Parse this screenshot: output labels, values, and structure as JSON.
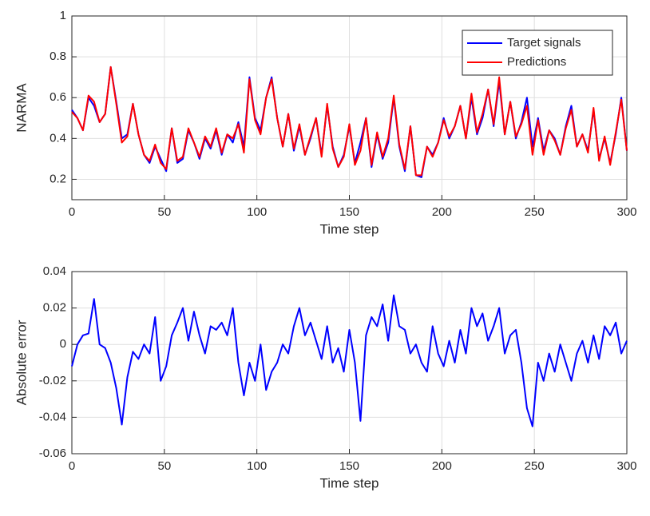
{
  "chart_data": [
    {
      "type": "line",
      "ylabel": "NARMA",
      "xlabel": "Time step",
      "grid": true,
      "legend": "northeast",
      "xlim": [
        0,
        300
      ],
      "xticks": [
        0,
        50,
        100,
        150,
        200,
        250,
        300
      ],
      "ylim": [
        0.1,
        1
      ],
      "yticks": [
        0.2,
        0.4,
        0.6,
        0.8,
        1
      ],
      "x": [
        0,
        3,
        6,
        9,
        12,
        15,
        18,
        21,
        24,
        27,
        30,
        33,
        36,
        39,
        42,
        45,
        48,
        51,
        54,
        57,
        60,
        63,
        66,
        69,
        72,
        75,
        78,
        81,
        84,
        87,
        90,
        93,
        96,
        99,
        102,
        105,
        108,
        111,
        114,
        117,
        120,
        123,
        126,
        129,
        132,
        135,
        138,
        141,
        144,
        147,
        150,
        153,
        156,
        159,
        162,
        165,
        168,
        171,
        174,
        177,
        180,
        183,
        186,
        189,
        192,
        195,
        198,
        201,
        204,
        207,
        210,
        213,
        216,
        219,
        222,
        225,
        228,
        231,
        234,
        237,
        240,
        243,
        246,
        249,
        252,
        255,
        258,
        261,
        264,
        267,
        270,
        273,
        276,
        279,
        282,
        285,
        288,
        291,
        294,
        297,
        300
      ],
      "series": [
        {
          "name": "Target signals",
          "color": "#0000ff",
          "values": [
            0.54,
            0.5,
            0.44,
            0.6,
            0.56,
            0.48,
            0.52,
            0.75,
            0.58,
            0.4,
            0.42,
            0.57,
            0.42,
            0.32,
            0.28,
            0.36,
            0.3,
            0.24,
            0.45,
            0.28,
            0.3,
            0.44,
            0.38,
            0.3,
            0.4,
            0.35,
            0.44,
            0.32,
            0.42,
            0.38,
            0.48,
            0.36,
            0.7,
            0.5,
            0.44,
            0.6,
            0.7,
            0.5,
            0.36,
            0.52,
            0.34,
            0.46,
            0.32,
            0.4,
            0.5,
            0.32,
            0.56,
            0.36,
            0.26,
            0.32,
            0.46,
            0.28,
            0.38,
            0.5,
            0.26,
            0.42,
            0.3,
            0.38,
            0.6,
            0.36,
            0.24,
            0.46,
            0.22,
            0.21,
            0.36,
            0.32,
            0.38,
            0.5,
            0.4,
            0.46,
            0.56,
            0.4,
            0.6,
            0.42,
            0.5,
            0.64,
            0.46,
            0.68,
            0.42,
            0.58,
            0.4,
            0.48,
            0.6,
            0.36,
            0.5,
            0.34,
            0.44,
            0.4,
            0.32,
            0.46,
            0.56,
            0.36,
            0.42,
            0.34,
            0.54,
            0.3,
            0.4,
            0.28,
            0.42,
            0.6,
            0.34
          ]
        },
        {
          "name": "Predictions",
          "color": "#ff0000",
          "values": [
            0.53,
            0.5,
            0.44,
            0.61,
            0.58,
            0.48,
            0.52,
            0.75,
            0.57,
            0.38,
            0.41,
            0.57,
            0.42,
            0.32,
            0.29,
            0.37,
            0.28,
            0.25,
            0.45,
            0.29,
            0.31,
            0.45,
            0.38,
            0.31,
            0.41,
            0.36,
            0.45,
            0.33,
            0.42,
            0.4,
            0.47,
            0.33,
            0.69,
            0.49,
            0.42,
            0.6,
            0.69,
            0.5,
            0.36,
            0.52,
            0.35,
            0.47,
            0.32,
            0.41,
            0.5,
            0.31,
            0.57,
            0.35,
            0.26,
            0.31,
            0.47,
            0.27,
            0.34,
            0.5,
            0.27,
            0.43,
            0.31,
            0.4,
            0.61,
            0.37,
            0.25,
            0.46,
            0.22,
            0.22,
            0.36,
            0.31,
            0.38,
            0.49,
            0.41,
            0.46,
            0.56,
            0.4,
            0.62,
            0.43,
            0.52,
            0.64,
            0.47,
            0.7,
            0.42,
            0.58,
            0.41,
            0.47,
            0.56,
            0.32,
            0.49,
            0.32,
            0.44,
            0.39,
            0.32,
            0.45,
            0.54,
            0.36,
            0.42,
            0.33,
            0.55,
            0.29,
            0.41,
            0.27,
            0.43,
            0.59,
            0.34
          ]
        }
      ]
    },
    {
      "type": "line",
      "ylabel": "Absolute error",
      "xlabel": "Time step",
      "grid": true,
      "xlim": [
        0,
        300
      ],
      "xticks": [
        0,
        50,
        100,
        150,
        200,
        250,
        300
      ],
      "ylim": [
        -0.06,
        0.04
      ],
      "yticks": [
        -0.06,
        -0.04,
        -0.02,
        0,
        0.02,
        0.04
      ],
      "x": [
        0,
        3,
        6,
        9,
        12,
        15,
        18,
        21,
        24,
        27,
        30,
        33,
        36,
        39,
        42,
        45,
        48,
        51,
        54,
        57,
        60,
        63,
        66,
        69,
        72,
        75,
        78,
        81,
        84,
        87,
        90,
        93,
        96,
        99,
        102,
        105,
        108,
        111,
        114,
        117,
        120,
        123,
        126,
        129,
        132,
        135,
        138,
        141,
        144,
        147,
        150,
        153,
        156,
        159,
        162,
        165,
        168,
        171,
        174,
        177,
        180,
        183,
        186,
        189,
        192,
        195,
        198,
        201,
        204,
        207,
        210,
        213,
        216,
        219,
        222,
        225,
        228,
        231,
        234,
        237,
        240,
        243,
        246,
        249,
        252,
        255,
        258,
        261,
        264,
        267,
        270,
        273,
        276,
        279,
        282,
        285,
        288,
        291,
        294,
        297,
        300
      ],
      "series": [
        {
          "color": "#0000ff",
          "values": [
            -0.012,
            0,
            0.005,
            0.006,
            0.025,
            0,
            -0.002,
            -0.01,
            -0.024,
            -0.044,
            -0.018,
            -0.004,
            -0.008,
            0,
            -0.005,
            0.015,
            -0.02,
            -0.012,
            0.005,
            0.012,
            0.02,
            0.002,
            0.018,
            0.005,
            -0.005,
            0.01,
            0.008,
            0.012,
            0.005,
            0.02,
            -0.01,
            -0.028,
            -0.01,
            -0.02,
            0,
            -0.025,
            -0.015,
            -0.01,
            0,
            -0.005,
            0.01,
            0.02,
            0.005,
            0.012,
            0.002,
            -0.008,
            0.01,
            -0.01,
            -0.002,
            -0.015,
            0.008,
            -0.01,
            -0.042,
            0.005,
            0.015,
            0.01,
            0.022,
            0.002,
            0.027,
            0.01,
            0.008,
            -0.005,
            0,
            -0.01,
            -0.015,
            0.01,
            -0.005,
            -0.012,
            0.002,
            -0.01,
            0.008,
            -0.005,
            0.02,
            0.01,
            0.017,
            0.002,
            0.01,
            0.02,
            -0.005,
            0.005,
            0.008,
            -0.01,
            -0.035,
            -0.045,
            -0.01,
            -0.02,
            -0.005,
            -0.015,
            0,
            -0.01,
            -0.02,
            -0.005,
            0.002,
            -0.01,
            0.005,
            -0.008,
            0.01,
            0.005,
            0.012,
            -0.005,
            0.002
          ]
        }
      ]
    }
  ]
}
